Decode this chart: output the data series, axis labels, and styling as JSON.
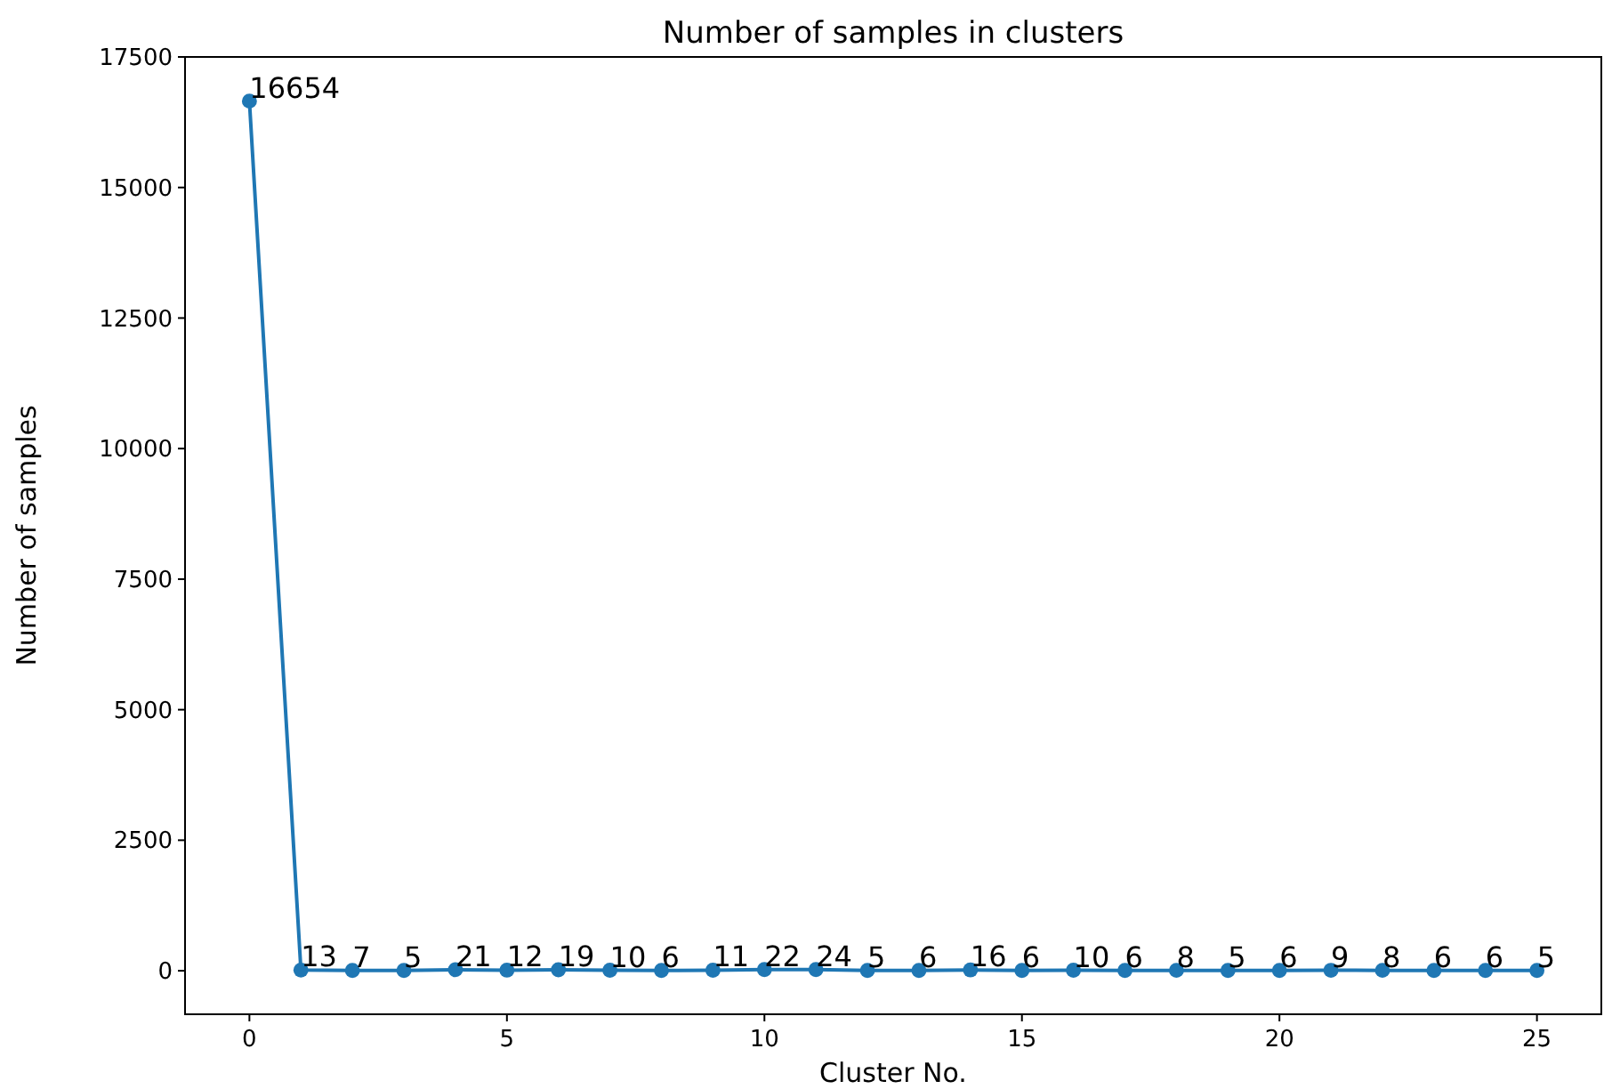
{
  "chart_data": {
    "type": "line",
    "title": "Number of samples in clusters",
    "xlabel": "Cluster No.",
    "ylabel": "Number of samples",
    "x": [
      0,
      1,
      2,
      3,
      4,
      5,
      6,
      7,
      8,
      9,
      10,
      11,
      12,
      13,
      14,
      15,
      16,
      17,
      18,
      19,
      20,
      21,
      22,
      23,
      24,
      25
    ],
    "series": [
      {
        "color": "#1f77b4",
        "values": [
          16654,
          13,
          7,
          5,
          21,
          12,
          19,
          10,
          6,
          11,
          22,
          24,
          5,
          6,
          16,
          6,
          10,
          6,
          8,
          5,
          6,
          9,
          8,
          6,
          6,
          5
        ]
      }
    ],
    "xlim": [
      -1.25,
      26.25
    ],
    "xticks": [
      0,
      5,
      10,
      15,
      20,
      25
    ],
    "ylim": [
      -833,
      17500
    ],
    "yticks": [
      0,
      2500,
      5000,
      7500,
      10000,
      12500,
      15000,
      17500
    ],
    "marker": "circle",
    "line_style": "solid",
    "data_labels": true
  }
}
